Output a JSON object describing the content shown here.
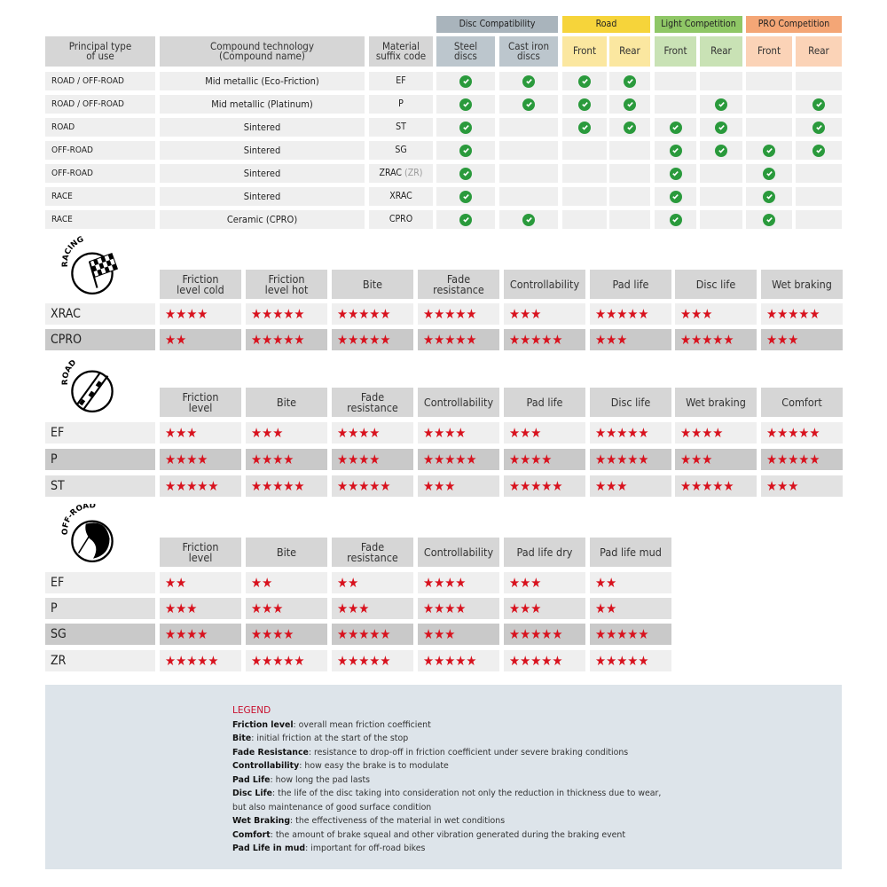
{
  "compat": {
    "groups": [
      {
        "label": "Disc Compatibility",
        "color": "#a9b4bc",
        "sub": "#bcc6cd"
      },
      {
        "label": "Road",
        "color": "#f6d43a",
        "sub": "#fbe7a0"
      },
      {
        "label": "Light Competition",
        "color": "#8fc766",
        "sub": "#c9e2b5"
      },
      {
        "label": "PRO Competition",
        "color": "#f4a676",
        "sub": "#fbd3b7"
      }
    ],
    "headers": [
      "Principal type\nof use",
      "Compound technology\n(Compound name)",
      "Material\nsuffix code",
      "Steel\ndiscs",
      "Cast iron\ndiscs",
      "Front",
      "Rear",
      "Front",
      "Rear",
      "Front",
      "Rear"
    ],
    "rows": [
      {
        "use": "ROAD / OFF-ROAD",
        "compound": "Mid metallic (Eco-Friction)",
        "code": "EF",
        "code_extra": "",
        "checks": [
          1,
          1,
          1,
          1,
          0,
          0,
          0,
          0
        ]
      },
      {
        "use": "ROAD / OFF-ROAD",
        "compound": "Mid metallic (Platinum)",
        "code": "P",
        "code_extra": "",
        "checks": [
          1,
          1,
          1,
          1,
          0,
          1,
          0,
          1
        ]
      },
      {
        "use": "ROAD",
        "compound": "Sintered",
        "code": "ST",
        "code_extra": "",
        "checks": [
          1,
          0,
          1,
          1,
          1,
          1,
          0,
          1
        ]
      },
      {
        "use": "OFF-ROAD",
        "compound": "Sintered",
        "code": "SG",
        "code_extra": "",
        "checks": [
          1,
          0,
          0,
          0,
          1,
          1,
          1,
          1
        ]
      },
      {
        "use": "OFF-ROAD",
        "compound": "Sintered",
        "code": "ZRAC",
        "code_extra": "(ZR)",
        "checks": [
          1,
          0,
          0,
          0,
          1,
          0,
          1,
          0
        ]
      },
      {
        "use": "RACE",
        "compound": "Sintered",
        "code": "XRAC",
        "code_extra": "",
        "checks": [
          1,
          0,
          0,
          0,
          1,
          0,
          1,
          0
        ]
      },
      {
        "use": "RACE",
        "compound": "Ceramic (CPRO)",
        "code": "CPRO",
        "code_extra": "",
        "checks": [
          1,
          1,
          0,
          0,
          1,
          0,
          1,
          0
        ]
      }
    ],
    "check_icon": "check-circle-icon",
    "check_color": "#2a9a3c"
  },
  "star_color": "#d8121e",
  "ratings": [
    {
      "icon_label": "RACING",
      "icon": "checkered-flag-icon",
      "headers": [
        "Friction\nlevel cold",
        "Friction\nlevel hot",
        "Bite",
        "Fade\nresistance",
        "Controllability",
        "Pad life",
        "Disc life",
        "Wet braking"
      ],
      "rows": [
        {
          "code": "XRAC",
          "stars": [
            4,
            5,
            5,
            5,
            3,
            5,
            3,
            5
          ],
          "bg": "#efefef"
        },
        {
          "code": "CPRO",
          "stars": [
            2,
            5,
            5,
            5,
            5,
            3,
            5,
            3
          ],
          "bg": "#c9c9c9"
        }
      ]
    },
    {
      "icon_label": "ROAD",
      "icon": "road-icon",
      "headers": [
        "Friction\nlevel",
        "Bite",
        "Fade\nresistance",
        "Controllability",
        "Pad life",
        "Disc life",
        "Wet braking",
        "Comfort"
      ],
      "rows": [
        {
          "code": "EF",
          "stars": [
            3,
            3,
            4,
            4,
            3,
            5,
            4,
            5
          ],
          "bg": "#efefef"
        },
        {
          "code": "P",
          "stars": [
            4,
            4,
            4,
            5,
            4,
            5,
            3,
            5
          ],
          "bg": "#c9c9c9"
        },
        {
          "code": "ST",
          "stars": [
            5,
            5,
            5,
            3,
            5,
            3,
            5,
            3
          ],
          "bg": "#e2e2e2"
        }
      ]
    },
    {
      "icon_label": "OFF-ROAD",
      "icon": "off-road-icon",
      "headers": [
        "Friction\nlevel",
        "Bite",
        "Fade\nresistance",
        "Controllability",
        "Pad life dry",
        "Pad life mud"
      ],
      "rows": [
        {
          "code": "EF",
          "stars": [
            2,
            2,
            2,
            4,
            3,
            2
          ],
          "bg": "#efefef"
        },
        {
          "code": "P",
          "stars": [
            3,
            3,
            3,
            4,
            3,
            2
          ],
          "bg": "#e0e0e0"
        },
        {
          "code": "SG",
          "stars": [
            4,
            4,
            5,
            3,
            5,
            5
          ],
          "bg": "#c9c9c9"
        },
        {
          "code": "ZR",
          "stars": [
            5,
            5,
            5,
            5,
            5,
            5
          ],
          "bg": "#efefef"
        }
      ]
    }
  ],
  "legend": {
    "title": "LEGEND",
    "items": [
      {
        "term": "Friction level",
        "desc": ": overall mean friction coefficient"
      },
      {
        "term": "Bite",
        "desc": ": initial friction at the start of the stop"
      },
      {
        "term": "Fade Resistance",
        "desc": ": resistance to drop-off in friction coefficient under severe braking conditions"
      },
      {
        "term": "Controllability",
        "desc": ": how easy the brake is to modulate"
      },
      {
        "term": "Pad Life",
        "desc": ": how long the pad lasts"
      },
      {
        "term": "Disc Life",
        "desc": ": the life of the disc taking into consideration not only the reduction in thickness due to wear,"
      },
      {
        "term": "",
        "desc": "but also maintenance of good surface condition"
      },
      {
        "term": "Wet Braking",
        "desc": ": the effectiveness of the material in wet conditions"
      },
      {
        "term": "Comfort",
        "desc": ": the amount of brake squeal and other vibration generated during the braking event"
      },
      {
        "term": "Pad Life in mud",
        "desc": ": important for off-road bikes"
      }
    ]
  }
}
